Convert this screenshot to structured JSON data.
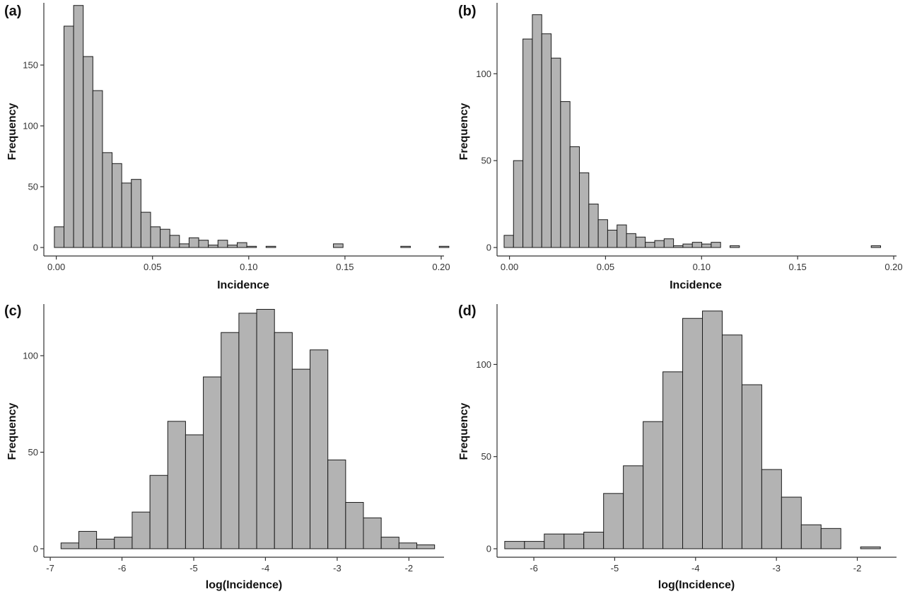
{
  "chart_data": [
    {
      "panel": "(a)",
      "type": "bar",
      "subtype": "histogram",
      "xlabel": "Incidence",
      "ylabel": "Frequency",
      "xlim": [
        -0.005,
        0.2
      ],
      "ylim": [
        0,
        200
      ],
      "xticks": [
        0.0,
        0.05,
        0.1,
        0.15,
        0.2
      ],
      "xtick_labels": [
        "0.00",
        "0.05",
        "0.10",
        "0.15",
        "0.20"
      ],
      "yticks": [
        0,
        50,
        100,
        150
      ],
      "yticks_labels": [
        "0",
        "50",
        "100",
        "150"
      ],
      "bin_start": -0.001,
      "bin_width": 0.005,
      "values": [
        17,
        182,
        199,
        157,
        129,
        78,
        69,
        53,
        56,
        29,
        17,
        15,
        10,
        3,
        8,
        6,
        2,
        6,
        2,
        4,
        1,
        0,
        1,
        0,
        0,
        0,
        0,
        0,
        0,
        3,
        0,
        0,
        0,
        0,
        0,
        0,
        1,
        0,
        0,
        0,
        1
      ],
      "grid": false
    },
    {
      "panel": "(b)",
      "type": "bar",
      "subtype": "histogram",
      "xlabel": "Incidence",
      "ylabel": "Frequency",
      "xlim": [
        -0.005,
        0.2
      ],
      "ylim": [
        0,
        140
      ],
      "xticks": [
        0.0,
        0.05,
        0.1,
        0.15,
        0.2
      ],
      "xtick_labels": [
        "0.00",
        "0.05",
        "0.10",
        "0.15",
        "0.20"
      ],
      "yticks": [
        0,
        50,
        100
      ],
      "yticks_labels": [
        "0",
        "50",
        "100"
      ],
      "bin_start": -0.0028,
      "bin_width": 0.0049,
      "values": [
        7,
        50,
        120,
        134,
        123,
        109,
        84,
        58,
        43,
        25,
        16,
        10,
        13,
        8,
        6,
        3,
        4,
        5,
        1,
        2,
        3,
        2,
        3,
        0,
        1,
        0,
        0,
        0,
        0,
        0,
        0,
        0,
        0,
        0,
        0,
        0,
        0,
        0,
        0,
        1
      ],
      "grid": false
    },
    {
      "panel": "(c)",
      "type": "bar",
      "subtype": "histogram",
      "xlabel": "log(Incidence)",
      "ylabel": "Frequency",
      "xlim": [
        -7.05,
        -1.55
      ],
      "ylim": [
        0,
        126
      ],
      "xticks": [
        -7,
        -6,
        -5,
        -4,
        -3,
        -2
      ],
      "xtick_labels": [
        "-7",
        "-6",
        "-5",
        "-4",
        "-3",
        "-2"
      ],
      "yticks": [
        0,
        50,
        100
      ],
      "yticks_labels": [
        "0",
        "50",
        "100"
      ],
      "bin_start": -6.85,
      "bin_width": 0.248,
      "values": [
        3,
        9,
        5,
        6,
        19,
        38,
        66,
        59,
        89,
        112,
        122,
        124,
        112,
        93,
        103,
        46,
        24,
        16,
        6,
        3,
        2
      ],
      "grid": false
    },
    {
      "panel": "(d)",
      "type": "bar",
      "subtype": "histogram",
      "xlabel": "log(Incidence)",
      "ylabel": "Frequency",
      "xlim": [
        -6.42,
        -1.55
      ],
      "ylim": [
        0,
        132
      ],
      "xticks": [
        -6,
        -5,
        -4,
        -3,
        -2
      ],
      "xtick_labels": [
        "-6",
        "-5",
        "-4",
        "-3",
        "-2"
      ],
      "yticks": [
        0,
        50,
        100
      ],
      "yticks_labels": [
        "0",
        "50",
        "100"
      ],
      "bin_start": -6.36,
      "bin_width": 0.2445,
      "values": [
        4,
        4,
        8,
        8,
        9,
        30,
        45,
        69,
        96,
        125,
        129,
        116,
        89,
        43,
        28,
        13,
        11,
        0,
        1
      ],
      "grid": false
    }
  ]
}
